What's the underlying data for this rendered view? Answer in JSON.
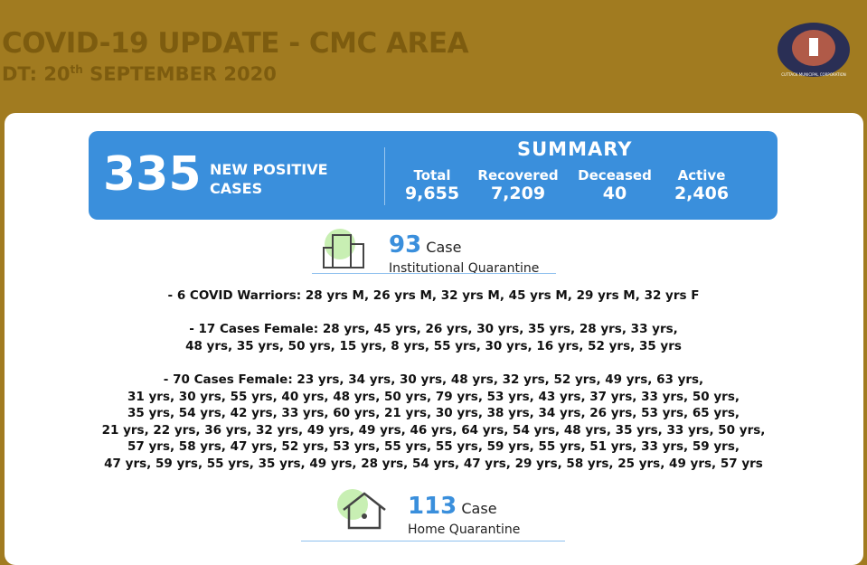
{
  "header": {
    "title": "COVID-19 UPDATE - CMC AREA",
    "date_prefix": "DT: 20",
    "date_sup": "th",
    "date_rest": "SEPTEMBER 2020",
    "logo_text": "CUTTACK MUNICIPAL CORPORATION"
  },
  "banner": {
    "new_cases": "335",
    "new_cases_label": "NEW POSITIVE CASES",
    "summary_title": "SUMMARY",
    "items": [
      {
        "label": "Total",
        "value": "9,655"
      },
      {
        "label": "Recovered",
        "value": "7,209"
      },
      {
        "label": "Deceased",
        "value": "40"
      },
      {
        "label": "Active",
        "value": "2,406"
      }
    ]
  },
  "institutional": {
    "count": "93",
    "unit": "Case",
    "label": "Institutional Quarantine",
    "groups": [
      [
        "-   6 COVID Warriors: 28 yrs  M, 26 yrs  M, 32 yrs M, 45 yrs M, 29 yrs M, 32 yrs F"
      ],
      [
        "-   17 Cases Female: 28 yrs, 45 yrs, 26 yrs, 30 yrs, 35 yrs, 28 yrs, 33 yrs,",
        "48 yrs, 35 yrs, 50 yrs, 15 yrs, 8 yrs, 55 yrs, 30 yrs, 16 yrs, 52 yrs, 35 yrs"
      ],
      [
        "-   70 Cases Female: 23 yrs, 34 yrs, 30 yrs, 48 yrs, 32 yrs, 52 yrs, 49 yrs, 63 yrs,",
        "31 yrs, 30 yrs, 55 yrs, 40 yrs, 48 yrs, 50 yrs, 79 yrs, 53 yrs, 43 yrs, 37 yrs, 33 yrs, 50 yrs,",
        "35 yrs, 54 yrs, 42 yrs, 33 yrs, 60 yrs, 21 yrs, 30 yrs, 38 yrs, 34 yrs, 26 yrs, 53 yrs, 65 yrs,",
        "21 yrs, 22 yrs, 36 yrs, 32 yrs, 49 yrs, 49 yrs, 46 yrs, 64 yrs, 54 yrs, 48 yrs, 35 yrs, 33 yrs, 50 yrs,",
        "57 yrs, 58 yrs, 47 yrs, 52 yrs, 53 yrs, 55 yrs, 55 yrs, 59 yrs, 55 yrs, 51 yrs, 33 yrs, 59 yrs,",
        "47 yrs, 59 yrs, 55 yrs, 35 yrs, 49 yrs, 28 yrs, 54 yrs, 47 yrs, 29 yrs, 58 yrs, 25 yrs, 49 yrs, 57 yrs"
      ]
    ]
  },
  "home": {
    "count": "113",
    "unit": "Case",
    "label": "Home Quarantine"
  }
}
